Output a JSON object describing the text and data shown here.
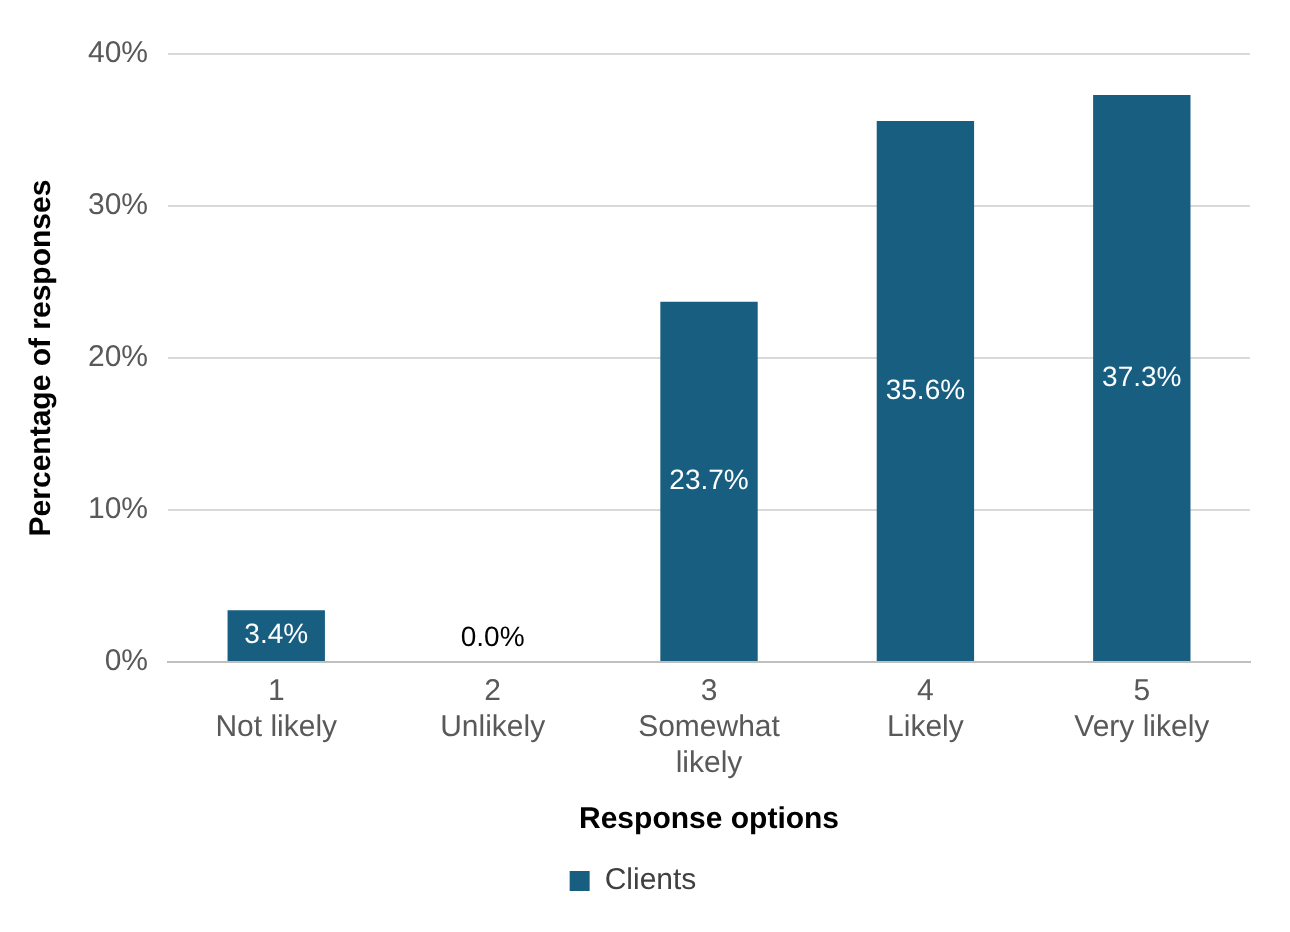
{
  "chart_data": {
    "type": "bar",
    "xlabel": "Response options",
    "ylabel": "Percentage of responses",
    "categories": [
      "1\nNot likely",
      "2\nUnlikely",
      "3\nSomewhat\nlikely",
      "4\nLikely",
      "5\nVery likely"
    ],
    "series": [
      {
        "name": "Clients",
        "color": "#175e80",
        "values": [
          3.4,
          0.0,
          23.7,
          35.6,
          37.3
        ],
        "value_labels": [
          "3.4%",
          "0.0%",
          "23.7%",
          "35.6%",
          "37.3%"
        ]
      }
    ],
    "ylim": [
      0,
      40
    ],
    "yticks": [
      {
        "value": 0,
        "label": "0%"
      },
      {
        "value": 10,
        "label": "10%"
      },
      {
        "value": 20,
        "label": "20%"
      },
      {
        "value": 30,
        "label": "30%"
      },
      {
        "value": 40,
        "label": "40%"
      }
    ],
    "grid": "y",
    "legend": "bottom"
  }
}
